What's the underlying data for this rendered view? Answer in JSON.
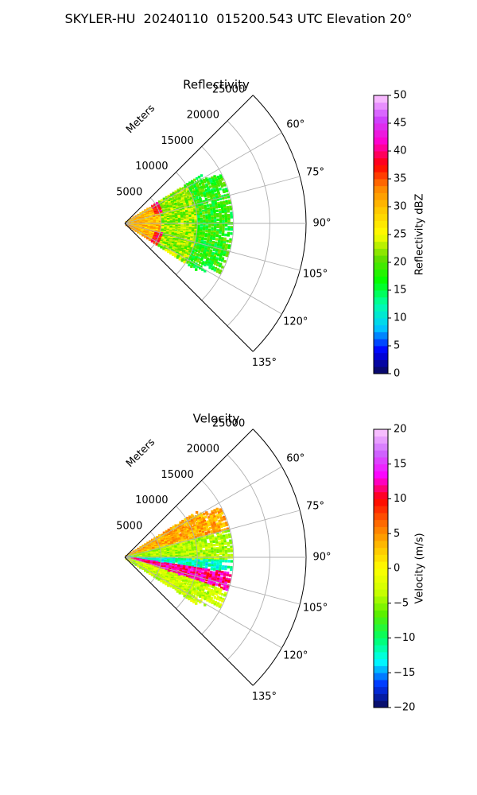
{
  "title": "SKYLER-HU  20240110  015200.543 UTC Elevation 20°",
  "colors": {
    "reflectivity_stops": [
      "#0a0a55",
      "#0000ff",
      "#00ccff",
      "#00ffaa",
      "#00ff00",
      "#66dd00",
      "#ffff00",
      "#ffcc00",
      "#ff8800",
      "#ff0000",
      "#ff00cc",
      "#cc44ff",
      "#ffccff"
    ],
    "velocity_stops": [
      "#0a0a55",
      "#0033ff",
      "#00ffff",
      "#00ff66",
      "#55ee00",
      "#ccff00",
      "#ffff00",
      "#ffbb00",
      "#ff6600",
      "#ff0000",
      "#ff00ff",
      "#cc66ff",
      "#ffccff"
    ]
  },
  "chart_data": [
    {
      "type": "heatmap",
      "projection": "polar-sector",
      "title": "Reflectivity",
      "radial_label": "Meters",
      "radial_ticks": [
        "5000",
        "10000",
        "15000",
        "20000",
        "25000"
      ],
      "radial_range": [
        0,
        25000
      ],
      "angle_range_deg": [
        45,
        135
      ],
      "angle_ticks": [
        "60°",
        "75°",
        "90°",
        "105°",
        "120°",
        "135°"
      ],
      "grid": true,
      "data_extent_m": 15000,
      "colorbar": {
        "label": "Reflectivity dBZ",
        "range": [
          0,
          50
        ],
        "ticks": [
          "0",
          "5",
          "10",
          "15",
          "20",
          "25",
          "30",
          "35",
          "40",
          "45",
          "50"
        ]
      },
      "range_bins": [
        {
          "range_m": [
            0,
            5000
          ],
          "dominant_dbz": 30,
          "note_band_dbz": 38
        },
        {
          "range_m": [
            5000,
            10000
          ],
          "dominant_dbz": 22
        },
        {
          "range_m": [
            10000,
            15000
          ],
          "dominant_dbz": 18
        }
      ]
    },
    {
      "type": "heatmap",
      "projection": "polar-sector",
      "title": "Velocity",
      "radial_label": "Meters",
      "radial_ticks": [
        "5000",
        "10000",
        "15000",
        "20000",
        "25000"
      ],
      "radial_range": [
        0,
        25000
      ],
      "angle_range_deg": [
        45,
        135
      ],
      "angle_ticks": [
        "60°",
        "75°",
        "90°",
        "105°",
        "120°",
        "135°"
      ],
      "grid": true,
      "data_extent_m": 15000,
      "colorbar": {
        "label": "Velocity (m/s)",
        "range": [
          -20,
          20
        ],
        "ticks": [
          "−20",
          "−15",
          "−10",
          "−5",
          "0",
          "5",
          "10",
          "15",
          "20"
        ]
      },
      "azimuth_bands": [
        {
          "az_deg": [
            58,
            75
          ],
          "velocity_ms": 4
        },
        {
          "az_deg": [
            75,
            92
          ],
          "velocity_ms": -4
        },
        {
          "az_deg": [
            92,
            98
          ],
          "velocity_ms": -12
        },
        {
          "az_deg": [
            98,
            108
          ],
          "velocity_ms": 12
        },
        {
          "az_deg": [
            108,
            123
          ],
          "velocity_ms": -3
        }
      ]
    }
  ]
}
